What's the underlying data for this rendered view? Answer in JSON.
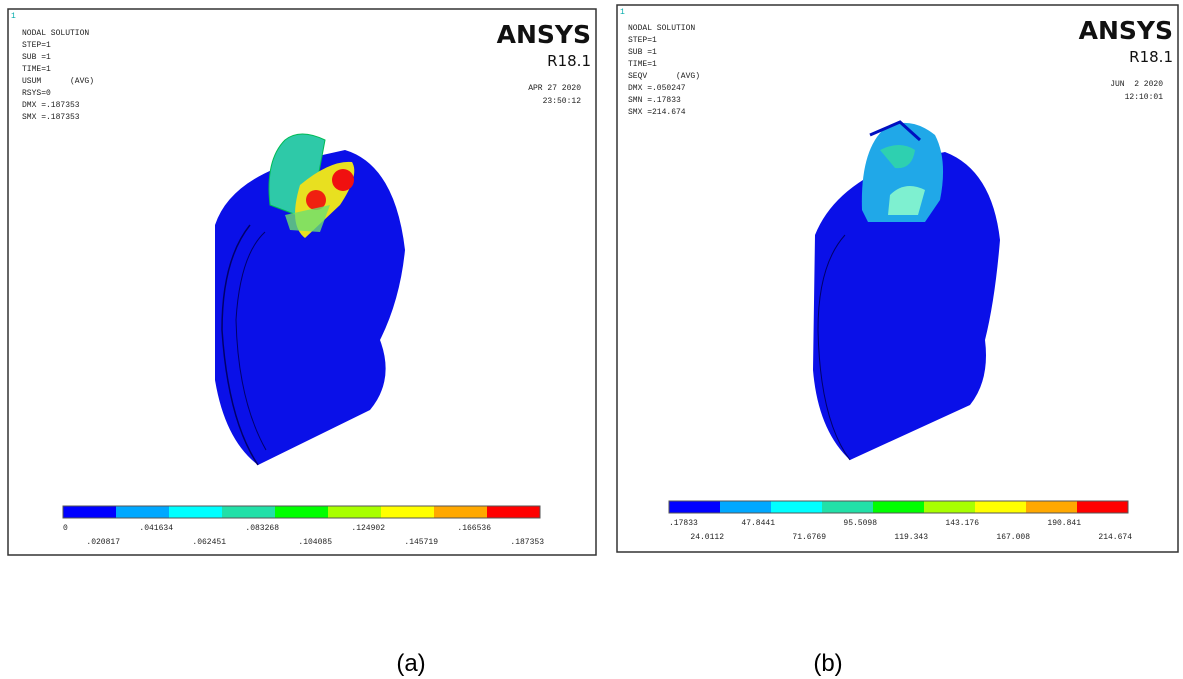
{
  "panels": [
    {
      "window": "1",
      "header": {
        "lines": [
          "NODAL SOLUTION",
          "STEP=1",
          "SUB =1",
          "TIME=1",
          "USUM      (AVG)",
          "RSYS=0",
          "DMX =.187353",
          "SMX =.187353"
        ],
        "brand": "ANSYS",
        "version": "R18.1",
        "date": "APR 27 2020",
        "time": "23:50:12"
      },
      "legend": {
        "labels": [
          "0",
          ".020817",
          ".041634",
          ".062451",
          ".083268",
          ".104085",
          ".124902",
          ".145719",
          ".166536",
          ".187353"
        ]
      },
      "caption": "(a)"
    },
    {
      "window": "1",
      "header": {
        "lines": [
          "NODAL SOLUTION",
          "STEP=1",
          "SUB =1",
          "TIME=1",
          "SEQV      (AVG)",
          "DMX =.050247",
          "SMN =.17833",
          "SMX =214.674"
        ],
        "brand": "ANSYS",
        "version": "R18.1",
        "date": "JUN  2 2020",
        "time": "12:10:01"
      },
      "legend": {
        "labels": [
          ".17833",
          "24.0112",
          "47.8441",
          "71.6769",
          "95.5098",
          "119.343",
          "143.176",
          "167.008",
          "190.841",
          "214.674"
        ]
      },
      "caption": "(b)"
    }
  ]
}
